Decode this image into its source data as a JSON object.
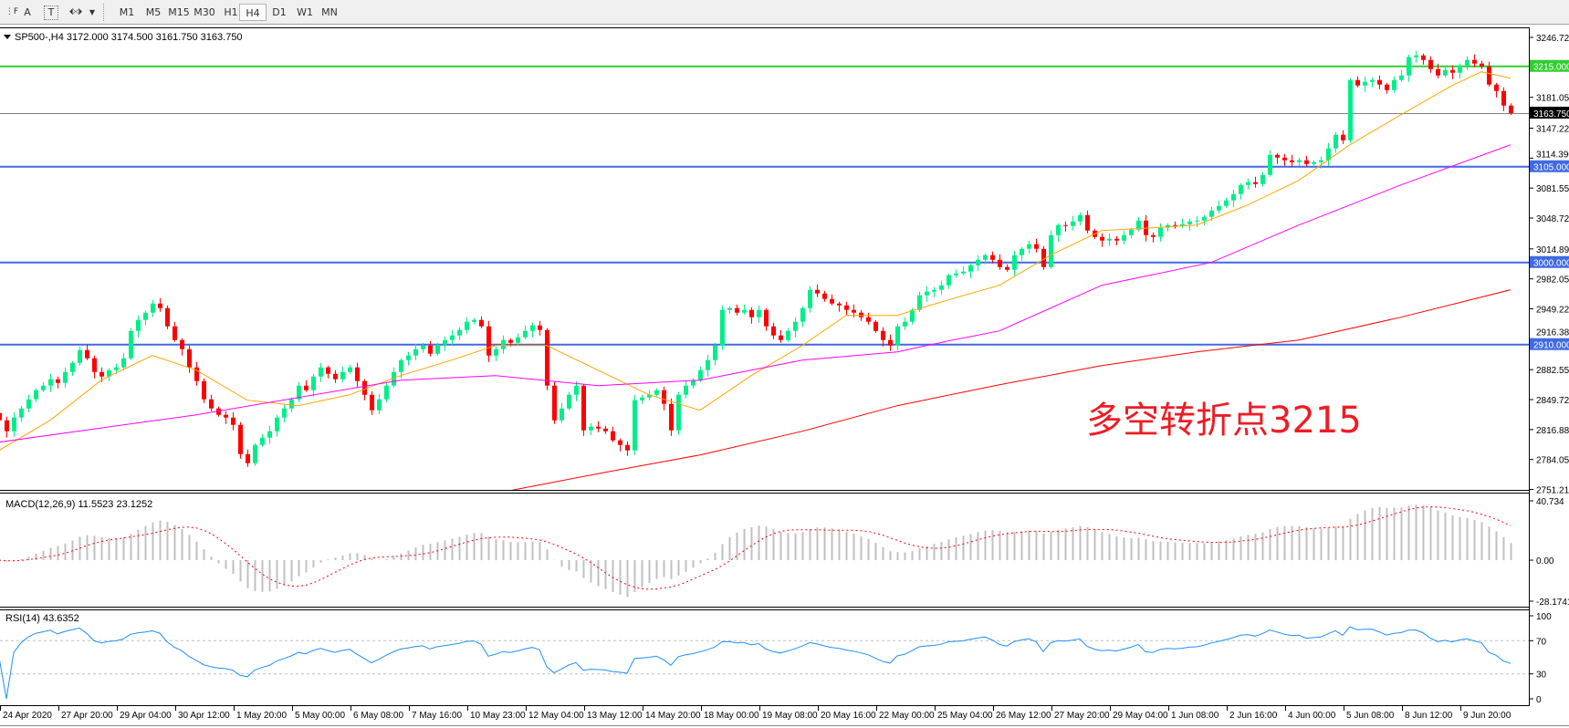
{
  "toolbar": {
    "tools": [
      {
        "name": "fibonacci-tool-icon",
        "glyph": "⋮F"
      },
      {
        "name": "text-tool-icon",
        "glyph": "A"
      },
      {
        "name": "text-label-tool-icon",
        "glyph": "T"
      },
      {
        "name": "arrows-tool-icon",
        "glyph": "⬖⬗"
      }
    ],
    "timeframes": [
      "M1",
      "M5",
      "M15",
      "M30",
      "H1",
      "H4",
      "D1",
      "W1",
      "MN"
    ],
    "selected_timeframe": "H4"
  },
  "chart": {
    "title": "SP500-,H4  3172.000 3174.500 3161.750 3163.750",
    "annotation": "多空转折点3215",
    "macd_label": "MACD(12,26,9) 11.5523 23.1252",
    "rsi_label": "RSI(14) 43.6352",
    "colors": {
      "bull": "#00ee88",
      "bear": "#ff0000",
      "ma_fast": "#ffa500",
      "ma_mid": "#ff00ff",
      "ma_slow": "#ff0000",
      "support_line": "#4169e1",
      "resistance_line": "#32cd32",
      "bid_line": "#808080",
      "macd_hist": "#c0c0c0",
      "macd_signal": "#ff0000",
      "rsi": "#1e90ff",
      "annotation": "#ee1c25"
    }
  },
  "chart_data": {
    "type": "candlestick",
    "symbol": "SP500-",
    "timeframe": "H4",
    "last_bar": {
      "open": 3172.0,
      "high": 3174.5,
      "low": 3161.75,
      "close": 3163.75
    },
    "bid": 3163.75,
    "first_open": 2835,
    "close": [
      2827,
      2815,
      2830,
      2840,
      2850,
      2860,
      2865,
      2872,
      2868,
      2880,
      2890,
      2904,
      2895,
      2880,
      2875,
      2882,
      2885,
      2895,
      2925,
      2937,
      2945,
      2955,
      2950,
      2930,
      2915,
      2905,
      2885,
      2870,
      2850,
      2840,
      2833,
      2830,
      2822,
      2790,
      2780,
      2800,
      2808,
      2815,
      2830,
      2840,
      2850,
      2865,
      2860,
      2875,
      2885,
      2878,
      2872,
      2880,
      2885,
      2870,
      2855,
      2838,
      2850,
      2865,
      2880,
      2893,
      2898,
      2905,
      2909,
      2900,
      2910,
      2915,
      2920,
      2926,
      2935,
      2937,
      2930,
      2898,
      2905,
      2915,
      2912,
      2918,
      2925,
      2931,
      2926,
      2865,
      2827,
      2840,
      2855,
      2865,
      2816,
      2820,
      2818,
      2815,
      2805,
      2800,
      2794,
      2849,
      2852,
      2855,
      2860,
      2845,
      2816,
      2855,
      2865,
      2871,
      2882,
      2893,
      2909,
      2948,
      2950,
      2945,
      2948,
      2940,
      2948,
      2930,
      2920,
      2915,
      2925,
      2935,
      2950,
      2970,
      2966,
      2960,
      2955,
      2953,
      2948,
      2945,
      2940,
      2935,
      2925,
      2915,
      2909,
      2930,
      2935,
      2948,
      2964,
      2968,
      2970,
      2975,
      2986,
      2988,
      2990,
      2997,
      3003,
      3008,
      3003,
      2995,
      2992,
      3008,
      3015,
      3020,
      3015,
      2995,
      3030,
      3041,
      3040,
      3045,
      3052,
      3035,
      3028,
      3024,
      3026,
      3024,
      3030,
      3036,
      3046,
      3030,
      3028,
      3038,
      3041,
      3040,
      3042,
      3045,
      3046,
      3050,
      3057,
      3062,
      3068,
      3075,
      3085,
      3088,
      3086,
      3096,
      3118,
      3115,
      3112,
      3110,
      3112,
      3108,
      3110,
      3112,
      3125,
      3140,
      3134,
      3200,
      3194,
      3198,
      3200,
      3195,
      3189,
      3200,
      3205,
      3225,
      3227,
      3222,
      3212,
      3205,
      3211,
      3208,
      3216,
      3222,
      3218,
      3215,
      3195,
      3188,
      3172,
      3163.75
    ],
    "moving_averages": [
      {
        "color": "#ffa500",
        "points": [
          [
            0,
            2794
          ],
          [
            7,
            2827
          ],
          [
            14,
            2871
          ],
          [
            21,
            2898
          ],
          [
            27,
            2882
          ],
          [
            34,
            2849
          ],
          [
            41,
            2843
          ],
          [
            48,
            2855
          ],
          [
            55,
            2876
          ],
          [
            62,
            2893
          ],
          [
            68,
            2909
          ],
          [
            75,
            2909
          ],
          [
            82,
            2882
          ],
          [
            89,
            2855
          ],
          [
            96,
            2838
          ],
          [
            103,
            2876
          ],
          [
            110,
            2909
          ],
          [
            116,
            2942
          ],
          [
            123,
            2942
          ],
          [
            130,
            2959
          ],
          [
            137,
            2975
          ],
          [
            144,
            3008
          ],
          [
            151,
            3035
          ],
          [
            158,
            3038
          ],
          [
            164,
            3041
          ],
          [
            171,
            3063
          ],
          [
            178,
            3090
          ],
          [
            185,
            3129
          ],
          [
            192,
            3162
          ],
          [
            199,
            3194
          ],
          [
            203,
            3209
          ],
          [
            207,
            3202
          ]
        ]
      },
      {
        "color": "#ff00ff",
        "points": [
          [
            0,
            2803
          ],
          [
            27,
            2833
          ],
          [
            55,
            2871
          ],
          [
            68,
            2876
          ],
          [
            82,
            2865
          ],
          [
            96,
            2871
          ],
          [
            110,
            2893
          ],
          [
            123,
            2902
          ],
          [
            130,
            2914
          ],
          [
            137,
            2925
          ],
          [
            151,
            2975
          ],
          [
            166,
            3000
          ],
          [
            178,
            3041
          ],
          [
            192,
            3085
          ],
          [
            207,
            3129
          ]
        ]
      },
      {
        "color": "#ff0000",
        "points": [
          [
            70,
            2750
          ],
          [
            83,
            2770
          ],
          [
            96,
            2789
          ],
          [
            110,
            2815
          ],
          [
            123,
            2843
          ],
          [
            137,
            2866
          ],
          [
            151,
            2887
          ],
          [
            164,
            2902
          ],
          [
            178,
            2915
          ],
          [
            192,
            2940
          ],
          [
            207,
            2970
          ]
        ]
      }
    ],
    "horizontal_lines": [
      {
        "price": 3215,
        "label": "3215.000",
        "color": "#32cd32"
      },
      {
        "price": 3105,
        "label": "3105.000",
        "color": "#4169e1"
      },
      {
        "price": 3000,
        "label": "3000.000",
        "color": "#4169e1"
      },
      {
        "price": 2910,
        "label": "2910.000",
        "color": "#4169e1"
      }
    ],
    "bid_label": "3163.750",
    "ylim": [
      2751.215,
      3246.725
    ],
    "price_ticks": [
      "3246.725",
      "3181.055",
      "3147.225",
      "3114.390",
      "3081.555",
      "3048.720",
      "3014.890",
      "2982.055",
      "2949.220",
      "2916.385",
      "2882.555",
      "2849.720",
      "2816.885",
      "2784.050",
      "2751.215"
    ],
    "x_labels": [
      "24 Apr 2020",
      "27 Apr 20:00",
      "29 Apr 04:00",
      "30 Apr 12:00",
      "1 May 20:00",
      "5 May 00:00",
      "6 May 08:00",
      "7 May 16:00",
      "10 May 23:00",
      "12 May 04:00",
      "13 May 12:00",
      "14 May 20:00",
      "18 May 00:00",
      "19 May 08:00",
      "20 May 16:00",
      "22 May 00:00",
      "25 May 04:00",
      "26 May 12:00",
      "27 May 20:00",
      "29 May 04:00",
      "1 Jun 08:00",
      "2 Jun 16:00",
      "4 Jun 00:00",
      "5 Jun 08:00",
      "8 Jun 12:00",
      "9 Jun 20:00"
    ],
    "macd": {
      "fast": 12,
      "slow": 26,
      "signal": 9,
      "ylim": [
        -28.1741,
        40.734
      ],
      "ticks": [
        "40.734",
        "0.00",
        "-28.1741"
      ]
    },
    "rsi": {
      "period": 14,
      "levels": [
        70,
        30
      ],
      "ticks": [
        "100",
        "70",
        "30",
        "0"
      ]
    }
  }
}
